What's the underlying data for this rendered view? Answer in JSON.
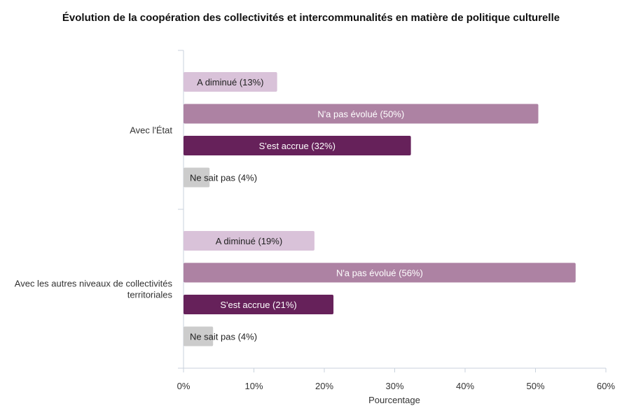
{
  "chart_data": {
    "type": "bar",
    "orientation": "horizontal",
    "title": "Évolution de la coopération des collectivités et intercommunalités en matière de politique culturelle",
    "xlabel": "Pourcentage",
    "ylabel": "",
    "xlim": [
      0,
      60
    ],
    "xticks": [
      "0%",
      "10%",
      "20%",
      "30%",
      "40%",
      "50%",
      "60%"
    ],
    "grid": false,
    "groups": [
      {
        "name": "Avec l'État",
        "name_lines": [
          "Avec l'État"
        ],
        "bars": [
          {
            "label": "A diminué (13%)",
            "value": 13.3
          },
          {
            "label": "N'a pas évolué (50%)",
            "value": 50.4
          },
          {
            "label": "S'est accrue (32%)",
            "value": 32.3
          },
          {
            "label": "Ne sait pas (4%)",
            "value": 3.7
          }
        ]
      },
      {
        "name": "Avec les autres niveaux de collectivités territoriales",
        "name_lines": [
          "Avec les autres niveaux de collectivités",
          "territoriales"
        ],
        "bars": [
          {
            "label": "A diminué (19%)",
            "value": 18.6
          },
          {
            "label": "N'a pas évolué (56%)",
            "value": 55.7
          },
          {
            "label": "S'est accrue (21%)",
            "value": 21.3
          },
          {
            "label": "Ne sait pas (4%)",
            "value": 4.2
          }
        ]
      }
    ],
    "bar_colors": [
      "#d9c2d9",
      "#ad82a3",
      "#66215a",
      "#cccccc"
    ],
    "label_colors": [
      "#222222",
      "#ffffff",
      "#ffffff",
      "#222222"
    ],
    "axis_color": "#c8d2dc"
  }
}
